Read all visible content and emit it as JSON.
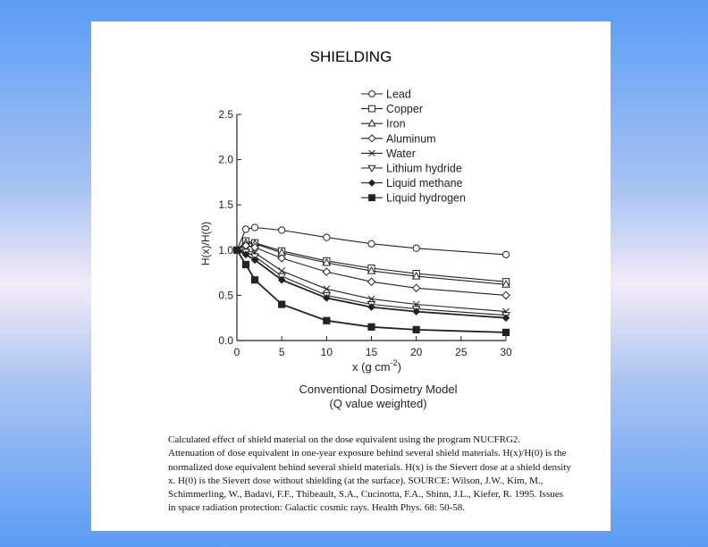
{
  "slide": {
    "title": "SHIELDING"
  },
  "chart_data": {
    "type": "line",
    "xlabel": "x (g cm",
    "xlabel_sup": "-2",
    "xlabel_tail": ")",
    "ylabel": "H(x)/H(0)",
    "xlim": [
      0,
      30
    ],
    "ylim": [
      0,
      2.5
    ],
    "xticks": [
      "0",
      "5",
      "10",
      "15",
      "20",
      "25",
      "30"
    ],
    "yticks": [
      "0.0",
      "0.5",
      "1.0",
      "1.5",
      "2.0",
      "2.5"
    ],
    "legend_position": "top-right",
    "x": [
      0,
      1,
      2,
      5,
      10,
      15,
      20,
      30
    ],
    "series": [
      {
        "name": "Lead",
        "marker": "circle",
        "values": [
          1.0,
          1.23,
          1.25,
          1.22,
          1.14,
          1.07,
          1.02,
          0.95
        ]
      },
      {
        "name": "Copper",
        "marker": "square",
        "values": [
          1.0,
          1.1,
          1.08,
          0.99,
          0.88,
          0.8,
          0.74,
          0.65
        ]
      },
      {
        "name": "Iron",
        "marker": "triangle",
        "values": [
          1.0,
          1.08,
          1.07,
          0.97,
          0.86,
          0.77,
          0.71,
          0.62
        ]
      },
      {
        "name": "Aluminum",
        "marker": "diamond",
        "values": [
          1.0,
          1.05,
          1.03,
          0.91,
          0.76,
          0.65,
          0.58,
          0.5
        ]
      },
      {
        "name": "Water",
        "marker": "x",
        "values": [
          1.0,
          1.0,
          0.97,
          0.77,
          0.57,
          0.46,
          0.4,
          0.32
        ]
      },
      {
        "name": "Lithium hydride",
        "marker": "triangle-down",
        "values": [
          1.0,
          0.98,
          0.93,
          0.71,
          0.5,
          0.4,
          0.35,
          0.28
        ]
      },
      {
        "name": "Liquid methane",
        "marker": "filled-diamond",
        "values": [
          1.0,
          0.95,
          0.89,
          0.67,
          0.47,
          0.37,
          0.32,
          0.25
        ]
      },
      {
        "name": "Liquid hydrogen",
        "marker": "filled-square",
        "values": [
          1.0,
          0.84,
          0.67,
          0.4,
          0.22,
          0.15,
          0.12,
          0.09
        ]
      }
    ],
    "model_label_line1": "Conventional Dosimetry Model",
    "model_label_line2": "(Q value weighted)"
  },
  "caption": {
    "lines": [
      "Calculated effect of shield material on the dose equivalent using the program NUCFRG2.",
      "Attenuation of dose equivalent in one-year exposure behind several shield materials. H(x)/H(0) is the",
      "normalized dose equivalent behind several shield materials.  H(x) is the Sievert dose at a shield density",
      "x.  H(0) is the Sievert dose without shielding (at the surface).  SOURCE:  Wilson, J.W., Kim, M.,",
      "Schimmerling, W., Badavi, F.F., Thibeault, S.A., Cucinotta, F.A., Shinn, J.L., Kiefer, R. 1995. Issues",
      "in space radiation protection: Galactic cosmic rays. Health Phys. 68: 50-58."
    ]
  }
}
